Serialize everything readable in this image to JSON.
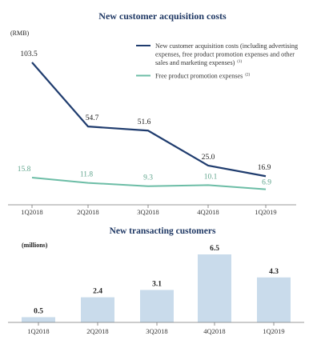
{
  "colors": {
    "navy": "#1f3c6e",
    "teal": "#6cbda6",
    "teal_label": "#5fa48c",
    "bar": "#c9dbeb",
    "axis": "#777777",
    "title": "#1f3864"
  },
  "chart_data": [
    {
      "type": "line",
      "title": "New customer acquisition costs",
      "unit": "(RMB)",
      "categories": [
        "1Q2018",
        "2Q2018",
        "3Q2018",
        "4Q2018",
        "1Q2019"
      ],
      "series": [
        {
          "name": "New customer acquisition costs (including advertising expenses, free product promotion expenses and other sales and marketing expenses)",
          "name_lines": [
            "New customer acquisition costs (including advertising",
            "expenses, free product promotion expenses and other",
            "sales and marketing expenses)"
          ],
          "footnote": "(1)",
          "color": "#1f3c6e",
          "values": [
            103.5,
            54.7,
            51.6,
            25.0,
            16.9
          ],
          "labels": [
            "103.5",
            "54.7",
            "51.6",
            "25.0",
            "16.9"
          ]
        },
        {
          "name": "Free product promotion expenses",
          "name_lines": [
            "Free product promotion expenses"
          ],
          "footnote": "(2)",
          "color": "#6cbda6",
          "values": [
            15.8,
            11.8,
            9.3,
            10.1,
            6.9
          ],
          "labels": [
            "15.8",
            "11.8",
            "9.3",
            "10.1",
            "6.9"
          ]
        }
      ],
      "ylim": [
        0,
        115
      ],
      "legend_position": "top-right",
      "grid": false
    },
    {
      "type": "bar",
      "title": "New transacting customers",
      "unit": "(millions)",
      "categories": [
        "1Q2018",
        "2Q2018",
        "3Q2018",
        "4Q2018",
        "1Q2019"
      ],
      "values": [
        0.5,
        2.4,
        3.1,
        6.5,
        4.3
      ],
      "labels": [
        "0.5",
        "2.4",
        "3.1",
        "6.5",
        "4.3"
      ],
      "color": "#c9dbeb",
      "ylim": [
        0,
        6.5
      ],
      "grid": false
    }
  ]
}
